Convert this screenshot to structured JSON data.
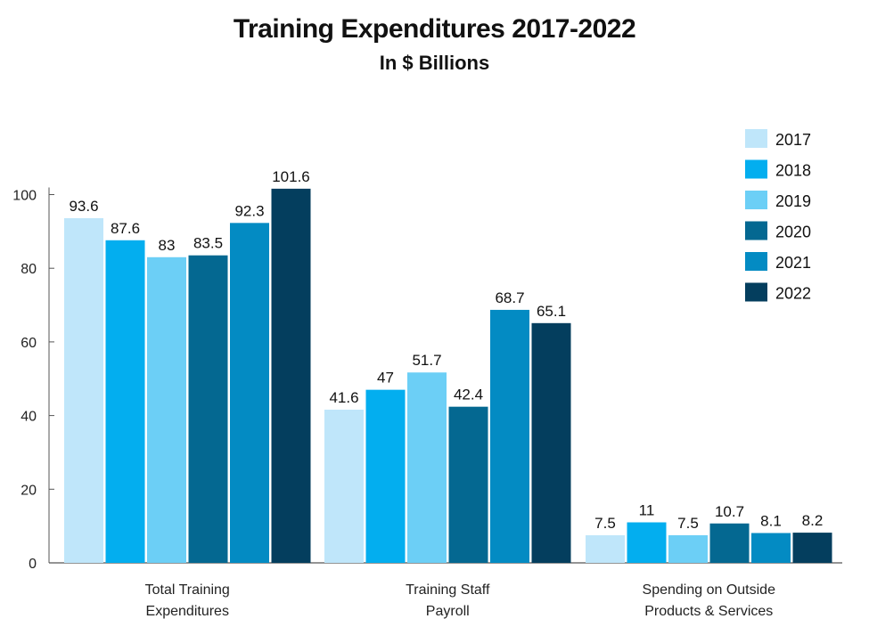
{
  "chart_data": {
    "type": "bar",
    "title": "Training Expenditures 2017-2022",
    "subtitle": "In $ Billions",
    "xlabel": "",
    "ylabel": "",
    "ylim": [
      0,
      100
    ],
    "yticks": [
      0,
      20,
      40,
      60,
      80,
      100
    ],
    "grid": false,
    "legend_position": "top-right",
    "categories": [
      [
        "Total Training",
        "Expenditures"
      ],
      [
        "Training Staff",
        "Payroll"
      ],
      [
        "Spending on Outside",
        "Products & Services"
      ]
    ],
    "series": [
      {
        "name": "2017",
        "color": "#bfe6fa",
        "values": [
          93.6,
          41.6,
          7.5
        ]
      },
      {
        "name": "2018",
        "color": "#03aeef",
        "values": [
          87.6,
          47,
          11
        ]
      },
      {
        "name": "2019",
        "color": "#6ccff6",
        "values": [
          83,
          51.7,
          7.5
        ]
      },
      {
        "name": "2020",
        "color": "#046891",
        "values": [
          83.5,
          42.4,
          10.7
        ]
      },
      {
        "name": "2021",
        "color": "#038bc3",
        "values": [
          92.3,
          68.7,
          8.1
        ]
      },
      {
        "name": "2022",
        "color": "#043e5e",
        "values": [
          101.6,
          65.1,
          8.2
        ]
      }
    ]
  }
}
